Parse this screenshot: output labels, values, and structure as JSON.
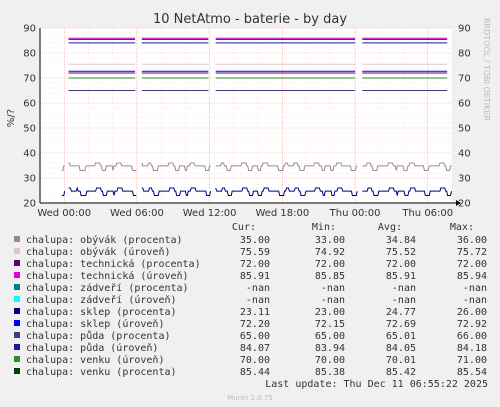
{
  "page": {
    "title": "10 NetAtmo - baterie - by day",
    "side_label": "RRDTOOL / TOBI OETIKER",
    "footer": "Munin 2.0.75"
  },
  "chart_data": {
    "type": "line",
    "title": "10 NetAtmo - baterie - by day",
    "ylabel": "%/?",
    "ylim": [
      20,
      90
    ],
    "yticks": [
      20,
      30,
      40,
      50,
      60,
      70,
      80,
      90
    ],
    "x_tick_labels": [
      "Wed 00:00",
      "Wed 06:00",
      "Wed 12:00",
      "Wed 18:00",
      "Thu 00:00",
      "Thu 06:00"
    ],
    "x_tick_hours": [
      0,
      6,
      12,
      18,
      24,
      30
    ],
    "xlim_hours": [
      -2,
      32
    ],
    "grid": true,
    "series": [
      {
        "name": "chalupa: obývák (procenta)",
        "color": "#a08888",
        "cur": "35.00",
        "min": "33.00",
        "avg": "34.84",
        "max": "36.00"
      },
      {
        "name": "chalupa: obývák (úroveň)",
        "color": "#dcc8c8",
        "cur": "75.59",
        "min": "74.92",
        "avg": "75.52",
        "max": "75.72"
      },
      {
        "name": "chalupa: technická (procenta)",
        "color": "#5a0070",
        "cur": "72.00",
        "min": "72.00",
        "avg": "72.00",
        "max": "72.00"
      },
      {
        "name": "chalupa: technická (úroveň)",
        "color": "#e000e0",
        "cur": "85.91",
        "min": "85.85",
        "avg": "85.91",
        "max": "85.94"
      },
      {
        "name": "chalupa: zádveří (procenta)",
        "color": "#008080",
        "cur": "-nan",
        "min": "-nan",
        "avg": "-nan",
        "max": "-nan"
      },
      {
        "name": "chalupa: zádveří (úroveň)",
        "color": "#00ffff",
        "cur": "-nan",
        "min": "-nan",
        "avg": "-nan",
        "max": "-nan"
      },
      {
        "name": "chalupa: sklep (procenta)",
        "color": "#000080",
        "cur": "23.11",
        "min": "23.00",
        "avg": "24.77",
        "max": "26.00"
      },
      {
        "name": "chalupa: sklep (úroveň)",
        "color": "#0000ff",
        "cur": "72.20",
        "min": "72.15",
        "avg": "72.69",
        "max": "72.92"
      },
      {
        "name": "chalupa: půda (procenta)",
        "color": "#3c3c78",
        "cur": "65.00",
        "min": "65.00",
        "avg": "65.01",
        "max": "66.00"
      },
      {
        "name": "chalupa: půda (úroveň)",
        "color": "#1a1aa0",
        "cur": "84.07",
        "min": "83.94",
        "avg": "84.05",
        "max": "84.18"
      },
      {
        "name": "chalupa: venku (úroveň)",
        "color": "#2e8b2e",
        "cur": "70.00",
        "min": "70.00",
        "avg": "70.01",
        "max": "71.00"
      },
      {
        "name": "chalupa: venku (procenta)",
        "color": "#004000",
        "cur": "85.44",
        "min": "85.38",
        "avg": "85.42",
        "max": "85.54"
      }
    ]
  },
  "legend_headers": {
    "cur": "Cur:",
    "min": "Min:",
    "avg": "Avg:",
    "max": "Max:"
  },
  "last_update": "Last update: Thu Dec 11 06:55:22 2025"
}
